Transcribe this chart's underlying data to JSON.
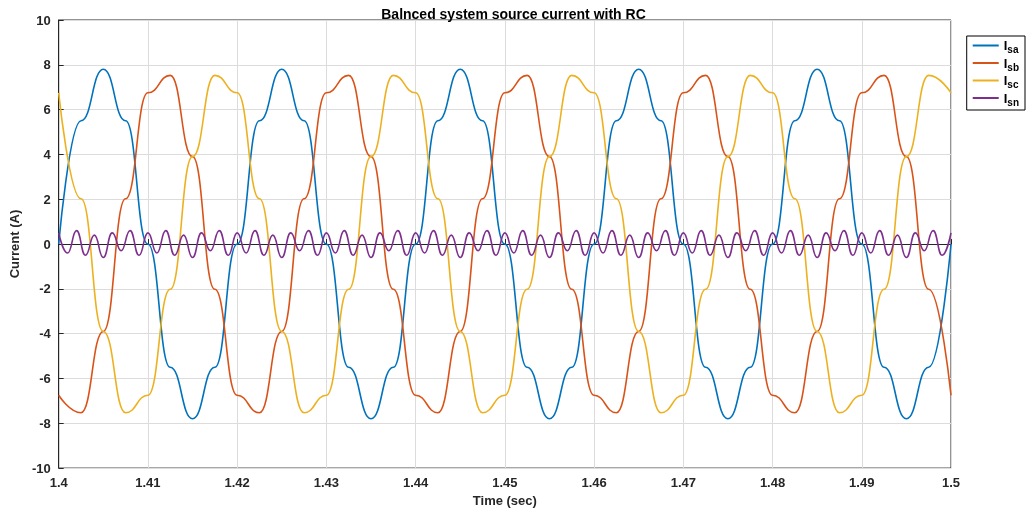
{
  "chart_data": {
    "type": "line",
    "title": "Balnced system source current with RC",
    "xlabel": "Time (sec)",
    "ylabel": "Current (A)",
    "x": [
      1.4,
      1.4025,
      1.405,
      1.4075,
      1.41,
      1.4125,
      1.415,
      1.4175,
      1.42,
      1.4225,
      1.425,
      1.4275,
      1.43,
      1.4325,
      1.435,
      1.4375,
      1.44,
      1.4425,
      1.445,
      1.4475,
      1.45,
      1.4525,
      1.455,
      1.4575,
      1.46,
      1.4625,
      1.465,
      1.4675,
      1.47,
      1.4725,
      1.475,
      1.4775,
      1.48,
      1.4825,
      1.485,
      1.4875,
      1.49,
      1.4925,
      1.495,
      1.4975,
      1.5
    ],
    "series": [
      {
        "name": "I$_{sa}$",
        "color": "#0072bd",
        "values": [
          0,
          5.5,
          7.8,
          5.5,
          0,
          -5.5,
          -7.8,
          -5.5,
          0,
          5.5,
          7.8,
          5.5,
          0,
          -5.5,
          -7.8,
          -5.5,
          0,
          5.5,
          7.8,
          5.5,
          0,
          -5.5,
          -7.8,
          -5.5,
          0,
          5.5,
          7.8,
          5.5,
          0,
          -5.5,
          -7.8,
          -5.5,
          0,
          5.5,
          7.8,
          5.5,
          0,
          -5.5,
          -7.8,
          -5.5,
          0
        ]
      },
      {
        "name": "I$_{sb}$",
        "color": "#d95319",
        "values": [
          -6.75,
          -7.53,
          -3.9,
          2.02,
          6.75,
          7.53,
          3.9,
          -2.02,
          -6.75,
          -7.53,
          -3.9,
          2.02,
          6.75,
          7.53,
          3.9,
          -2.02,
          -6.75,
          -7.53,
          -3.9,
          2.02,
          6.75,
          7.53,
          3.9,
          -2.02,
          -6.75,
          -7.53,
          -3.9,
          2.02,
          6.75,
          7.53,
          3.9,
          -2.02,
          -6.75,
          -7.53,
          -3.9,
          2.02,
          6.75,
          7.53,
          3.9,
          -2.02,
          -6.75
        ]
      },
      {
        "name": "I$_{sc}$",
        "color": "#edb120",
        "values": [
          6.75,
          2.02,
          -3.9,
          -7.53,
          -6.75,
          -2.02,
          3.9,
          7.53,
          6.75,
          2.02,
          -3.9,
          -7.53,
          -6.75,
          -2.02,
          3.9,
          7.53,
          6.75,
          2.02,
          -3.9,
          -7.53,
          -6.75,
          -2.02,
          3.9,
          7.53,
          6.75,
          2.02,
          -3.9,
          -7.53,
          -6.75,
          -2.02,
          3.9,
          7.53,
          6.75,
          2.02,
          -3.9,
          -7.53,
          -6.75,
          -2.02,
          3.9,
          7.53,
          6.75
        ]
      },
      {
        "name": "I$_{sn}$",
        "color": "#7e2f8e",
        "x": [
          1.4,
          1.401,
          1.402,
          1.403,
          1.404,
          1.405,
          1.406,
          1.407,
          1.408,
          1.409,
          1.41,
          1.411,
          1.412,
          1.413,
          1.414,
          1.415,
          1.416,
          1.417,
          1.418,
          1.419,
          1.42,
          1.421,
          1.422,
          1.423,
          1.424,
          1.425,
          1.426,
          1.427,
          1.428,
          1.429,
          1.43,
          1.431,
          1.432,
          1.433,
          1.434,
          1.435,
          1.436,
          1.437,
          1.438,
          1.439,
          1.44,
          1.441,
          1.442,
          1.443,
          1.444,
          1.445,
          1.446,
          1.447,
          1.448,
          1.449,
          1.45,
          1.451,
          1.452,
          1.453,
          1.454,
          1.455,
          1.456,
          1.457,
          1.458,
          1.459,
          1.46,
          1.461,
          1.462,
          1.463,
          1.464,
          1.465,
          1.466,
          1.467,
          1.468,
          1.469,
          1.47,
          1.471,
          1.472,
          1.473,
          1.474,
          1.475,
          1.476,
          1.477,
          1.478,
          1.479,
          1.48,
          1.481,
          1.482,
          1.483,
          1.484,
          1.485,
          1.486,
          1.487,
          1.488,
          1.489,
          1.49,
          1.491,
          1.492,
          1.493,
          1.494,
          1.495,
          1.496,
          1.497,
          1.498,
          1.499,
          1.5
        ],
        "values": [
          0.5,
          -0.4,
          0.6,
          -0.5,
          0.4,
          -0.6,
          0.5,
          -0.3,
          0.6,
          -0.5,
          0.5,
          -0.4,
          0.6,
          -0.5,
          0.4,
          -0.6,
          0.5,
          -0.3,
          0.6,
          -0.5,
          0.5,
          -0.4,
          0.6,
          -0.5,
          0.4,
          -0.6,
          0.5,
          -0.3,
          0.6,
          -0.5,
          0.5,
          -0.4,
          0.6,
          -0.5,
          0.4,
          -0.6,
          0.5,
          -0.3,
          0.6,
          -0.5,
          0.5,
          -0.4,
          0.6,
          -0.5,
          0.4,
          -0.6,
          0.5,
          -0.3,
          0.6,
          -0.5,
          0.5,
          -0.4,
          0.6,
          -0.5,
          0.4,
          -0.6,
          0.5,
          -0.3,
          0.6,
          -0.5,
          0.5,
          -0.4,
          0.6,
          -0.5,
          0.4,
          -0.6,
          0.5,
          -0.3,
          0.6,
          -0.5,
          0.5,
          -0.4,
          0.6,
          -0.5,
          0.4,
          -0.6,
          0.5,
          -0.3,
          0.6,
          -0.5,
          0.5,
          -0.4,
          0.6,
          -0.5,
          0.4,
          -0.6,
          0.5,
          -0.3,
          0.6,
          -0.5,
          0.5,
          -0.4,
          0.6,
          -0.5,
          0.4,
          -0.6,
          0.5,
          -0.3,
          0.6,
          -0.5,
          0.5
        ]
      }
    ],
    "xlim": [
      1.4,
      1.5
    ],
    "xticks": [
      1.4,
      1.41,
      1.42,
      1.43,
      1.44,
      1.45,
      1.46,
      1.47,
      1.48,
      1.49,
      1.5
    ],
    "ylim": [
      -10,
      10
    ],
    "yticks": [
      -10,
      -8,
      -6,
      -4,
      -2,
      0,
      2,
      4,
      6,
      8,
      10
    ],
    "grid": true,
    "legend": "top right",
    "marker": "none",
    "line_style": "solid"
  }
}
